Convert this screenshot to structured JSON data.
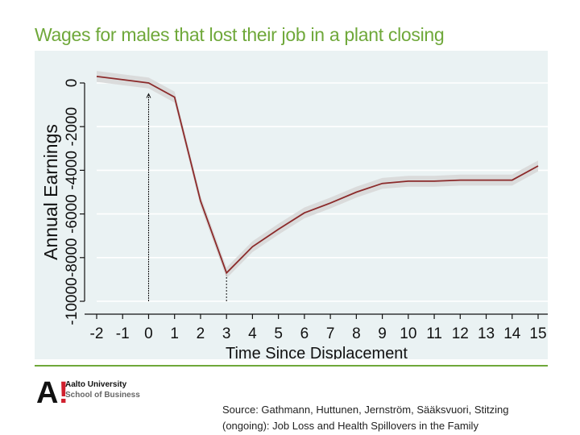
{
  "slide": {
    "title": "Wages for males that lost their job in a plant closing",
    "source_line1": "Source: Gathmann, Huttunen, Jernström, Sääksvuori, Stitzing",
    "source_line2": "(ongoing): Job Loss and Health Spillovers in the Family"
  },
  "logo": {
    "mark": "A",
    "mark_accent": "!",
    "university": "Aalto University",
    "school": "School of Business"
  },
  "colors": {
    "title": "#6fa83a",
    "plot_background": "#eaf2f3",
    "line": "#8b2a2a",
    "ci_band": "#d9d9d9",
    "grid": "#ffffff"
  },
  "chart_data": {
    "type": "line",
    "title": "",
    "xlabel": "Time Since Displacement",
    "ylabel": "Annual Earnings",
    "x": [
      -2,
      -1,
      0,
      1,
      2,
      3,
      4,
      5,
      6,
      7,
      8,
      9,
      10,
      11,
      12,
      13,
      14,
      15
    ],
    "y": [
      300,
      150,
      0,
      -650,
      -5400,
      -8700,
      -7500,
      -6700,
      -5950,
      -5500,
      -5000,
      -4600,
      -4500,
      -4500,
      -4450,
      -4450,
      -4450,
      -3800
    ],
    "ci_halfwidth": 250,
    "xticks": [
      "-2",
      "-1",
      "0",
      "1",
      "2",
      "3",
      "4",
      "5",
      "6",
      "7",
      "8",
      "9",
      "10",
      "11",
      "12",
      "13",
      "14",
      "15"
    ],
    "yticks": [
      {
        "value": 0,
        "label": "0"
      },
      {
        "value": -2000,
        "label": "-2000"
      },
      {
        "value": -4000,
        "label": "-4000"
      },
      {
        "value": -6000,
        "label": "-6000"
      },
      {
        "value": -8000,
        "label": "-8000"
      },
      {
        "value": -10000,
        "label": "-10000"
      }
    ],
    "xlim": [
      -2,
      15
    ],
    "ylim": [
      -10000,
      0
    ],
    "grid": true,
    "annotations": [
      {
        "type": "vertical-arrow",
        "x": 0,
        "y_from": -10000,
        "y_to": -500
      },
      {
        "type": "vertical-dashed",
        "x": 3,
        "y_from": -10000,
        "y_to": -8800
      }
    ]
  }
}
